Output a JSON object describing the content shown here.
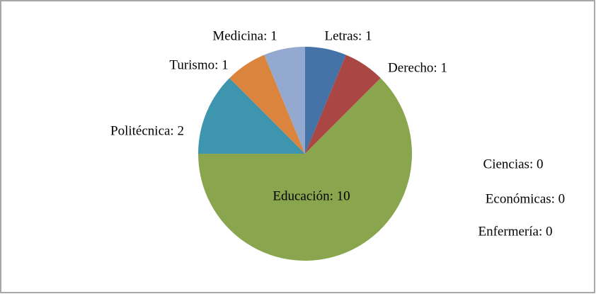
{
  "chart_data": {
    "type": "pie",
    "values": [
      1,
      1,
      10,
      0,
      0,
      0,
      2,
      1,
      1
    ],
    "value_labels": [
      "Letras: 1",
      "Derecho: 1",
      "Educación: 10",
      "Ciencias: 0",
      "Económicas: 0",
      "Enfermería: 0",
      "Politécnica: 2",
      "Turismo: 1",
      "Medicina: 1"
    ],
    "colors": [
      "#4572a7",
      "#aa4643",
      "#89a54e",
      null,
      null,
      null,
      "#3d96ae",
      "#db843d",
      "#93a9cf"
    ]
  }
}
